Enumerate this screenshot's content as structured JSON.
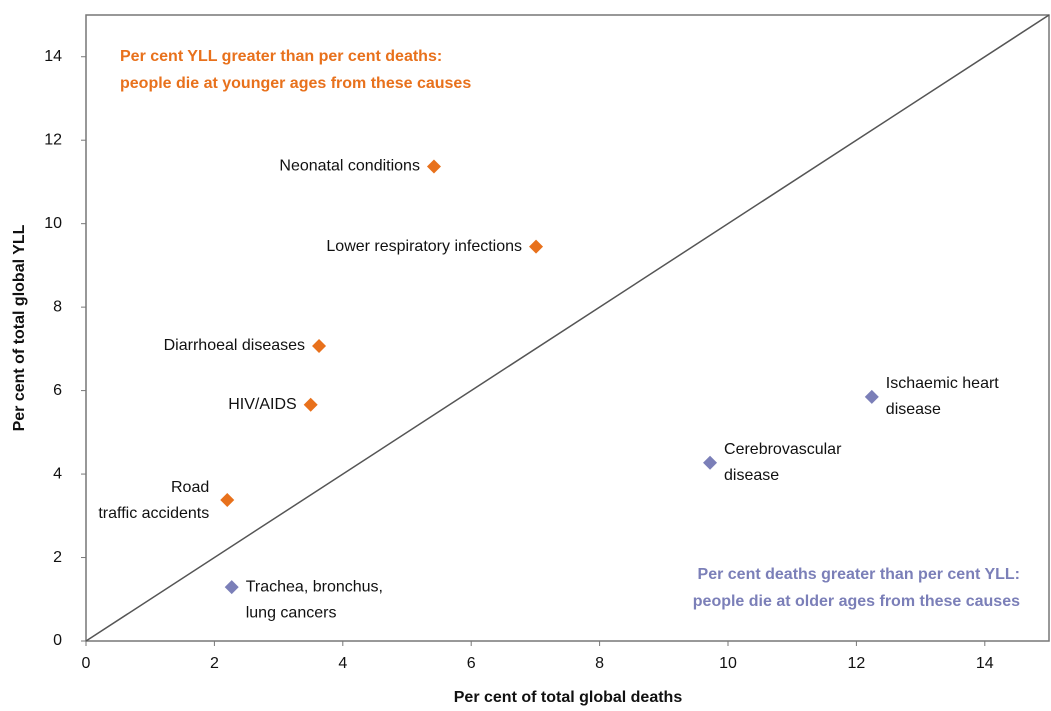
{
  "chart_data": {
    "type": "scatter",
    "xlabel": "Per cent of total global deaths",
    "ylabel": "Per cent of total global YLL",
    "xlim": [
      0,
      15
    ],
    "ylim": [
      0,
      15
    ],
    "xticks": [
      0,
      2,
      4,
      6,
      8,
      10,
      12,
      14
    ],
    "yticks": [
      0,
      2,
      4,
      6,
      8,
      10,
      12,
      14
    ],
    "diagonal": {
      "x": [
        0,
        15
      ],
      "y": [
        0,
        15
      ]
    },
    "series": [
      {
        "color": "#e8711c",
        "x": [
          5.42,
          7.01,
          3.63,
          3.5,
          2.2
        ],
        "values": [
          11.37,
          9.45,
          7.07,
          5.66,
          3.38
        ],
        "labels": [
          [
            "Neonatal conditions"
          ],
          [
            "Lower respiratory infections"
          ],
          [
            "Diarrhoeal diseases"
          ],
          [
            "HIV/AIDS"
          ],
          [
            "Road",
            "traffic accidents"
          ]
        ]
      },
      {
        "color": "#7b7fb8",
        "x": [
          2.27,
          9.72,
          12.24
        ],
        "values": [
          1.29,
          4.27,
          5.85
        ],
        "labels": [
          [
            "Trachea, bronchus,",
            "lung cancers"
          ],
          [
            "Cerebrovascular",
            "disease"
          ],
          [
            "Ischaemic heart",
            "disease"
          ]
        ]
      }
    ],
    "annotations": [
      {
        "color": "#e8711c",
        "lines": [
          "Per cent YLL greater than per cent deaths:",
          "people die at younger ages from these causes"
        ]
      },
      {
        "color": "#7b7fb8",
        "lines": [
          "Per cent deaths greater than per cent YLL:",
          "people die at older ages from these causes"
        ]
      }
    ]
  }
}
